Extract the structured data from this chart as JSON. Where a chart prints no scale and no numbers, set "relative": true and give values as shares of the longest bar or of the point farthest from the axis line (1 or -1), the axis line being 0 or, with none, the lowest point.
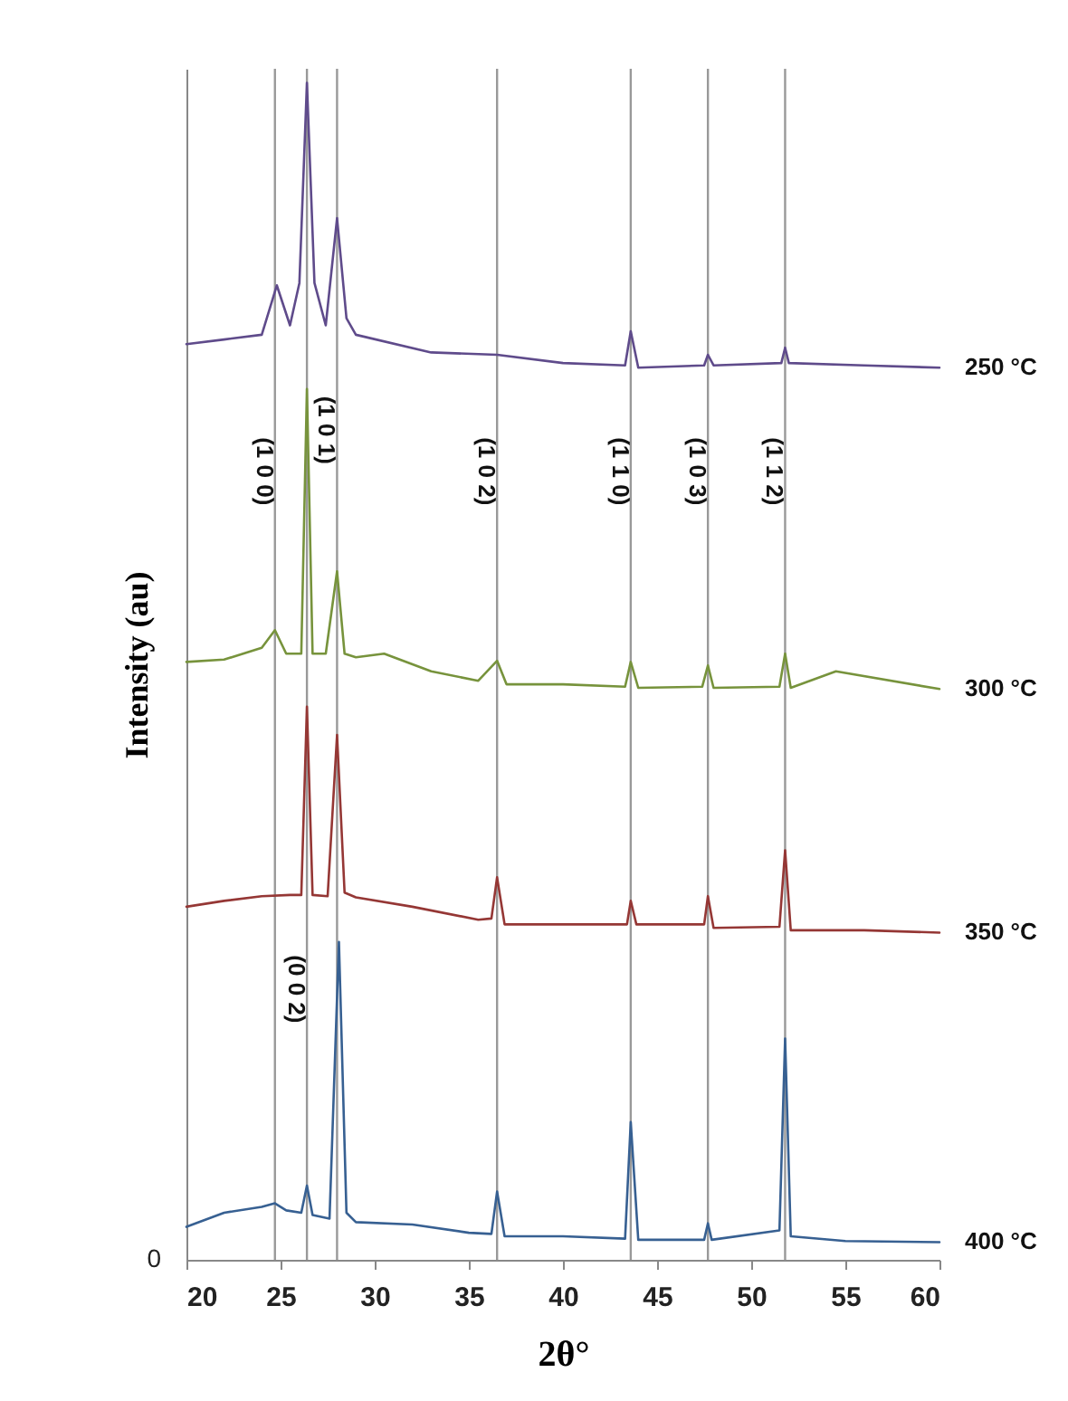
{
  "chart_data": {
    "type": "line",
    "relative": true,
    "xlabel": "2θ°",
    "ylabel": "Intensity (au)",
    "xlim": [
      20,
      60
    ],
    "xticks": [
      20,
      25,
      30,
      35,
      40,
      45,
      50,
      55,
      60
    ],
    "grid": false,
    "marker": "none",
    "line_style": "solid",
    "annotations": [
      "0",
      {
        "text": "(1 0 0)",
        "x": 24.7,
        "y": 0.67
      },
      {
        "text": "(0 0 2)",
        "x": 26.4,
        "y": 0.23
      },
      {
        "text": "(1 0 1)",
        "x": 28.0,
        "y": 0.705
      },
      {
        "text": "(1 0 2)",
        "x": 36.5,
        "y": 0.67
      },
      {
        "text": "(1 1 0)",
        "x": 43.6,
        "y": 0.67
      },
      {
        "text": "(1 0 3)",
        "x": 47.7,
        "y": 0.67
      },
      {
        "text": "(1 1 2)",
        "x": 51.8,
        "y": 0.67
      }
    ],
    "ref_lines": [
      {
        "axis": "x",
        "value": 24.7,
        "color": "#999999"
      },
      {
        "axis": "x",
        "value": 26.4,
        "color": "#999999"
      },
      {
        "axis": "x",
        "value": 28.0,
        "color": "#999999"
      },
      {
        "axis": "x",
        "value": 36.5,
        "color": "#999999"
      },
      {
        "axis": "x",
        "value": 43.6,
        "color": "#999999"
      },
      {
        "axis": "x",
        "value": 47.7,
        "color": "#999999"
      },
      {
        "axis": "x",
        "value": 51.8,
        "color": "#999999"
      }
    ],
    "series": [
      {
        "name": "250 °C",
        "color": "#5f4b8b",
        "x": [
          20,
          22,
          24,
          24.8,
          25.5,
          26,
          26.4,
          26.8,
          27.4,
          28,
          28.5,
          29,
          33,
          36.5,
          40,
          43.3,
          43.6,
          44,
          47.5,
          47.7,
          48,
          51.6,
          51.8,
          52,
          56,
          60
        ],
        "values": [
          0.778,
          0.782,
          0.786,
          0.828,
          0.794,
          0.83,
          1.0,
          0.83,
          0.794,
          0.885,
          0.8,
          0.786,
          0.771,
          0.769,
          0.762,
          0.76,
          0.789,
          0.758,
          0.76,
          0.769,
          0.76,
          0.762,
          0.775,
          0.762,
          0.76,
          0.758
        ]
      },
      {
        "name": "300 °C",
        "color": "#77933c",
        "x": [
          20,
          22,
          24,
          24.7,
          25.3,
          26.1,
          26.4,
          26.7,
          27.4,
          28,
          28.4,
          29,
          30.5,
          33,
          35.5,
          36.5,
          37,
          40,
          43.3,
          43.6,
          44,
          47.4,
          47.7,
          48,
          51.5,
          51.8,
          52.1,
          54.5,
          60
        ],
        "values": [
          0.508,
          0.51,
          0.52,
          0.535,
          0.515,
          0.515,
          0.74,
          0.515,
          0.515,
          0.585,
          0.515,
          0.512,
          0.515,
          0.5,
          0.492,
          0.509,
          0.489,
          0.489,
          0.487,
          0.508,
          0.486,
          0.487,
          0.505,
          0.486,
          0.487,
          0.515,
          0.486,
          0.5,
          0.485
        ]
      },
      {
        "name": "350 °C",
        "color": "#953735",
        "x": [
          20,
          22,
          24,
          25.5,
          26.1,
          26.4,
          26.7,
          27.5,
          28,
          28.4,
          29,
          32,
          35.5,
          36.2,
          36.5,
          36.9,
          40,
          43.4,
          43.6,
          43.9,
          47.5,
          47.7,
          48,
          51.5,
          51.8,
          52.1,
          56,
          60
        ],
        "values": [
          0.3,
          0.305,
          0.309,
          0.31,
          0.31,
          0.47,
          0.31,
          0.309,
          0.446,
          0.312,
          0.308,
          0.3,
          0.289,
          0.29,
          0.325,
          0.285,
          0.285,
          0.285,
          0.305,
          0.285,
          0.285,
          0.309,
          0.282,
          0.283,
          0.348,
          0.28,
          0.28,
          0.278
        ]
      },
      {
        "name": "400 °C",
        "color": "#376092",
        "x": [
          20,
          22,
          24,
          24.7,
          25.3,
          26.1,
          26.4,
          26.7,
          27.6,
          28.1,
          28.5,
          29,
          32,
          35,
          36.2,
          36.5,
          36.9,
          40,
          43.3,
          43.6,
          44,
          47.5,
          47.7,
          47.9,
          51.5,
          51.8,
          52.1,
          55,
          60
        ],
        "values": [
          0.028,
          0.04,
          0.045,
          0.048,
          0.042,
          0.04,
          0.063,
          0.038,
          0.035,
          0.27,
          0.04,
          0.032,
          0.03,
          0.023,
          0.022,
          0.058,
          0.02,
          0.02,
          0.018,
          0.117,
          0.017,
          0.017,
          0.031,
          0.017,
          0.025,
          0.188,
          0.02,
          0.016,
          0.015
        ]
      }
    ]
  }
}
